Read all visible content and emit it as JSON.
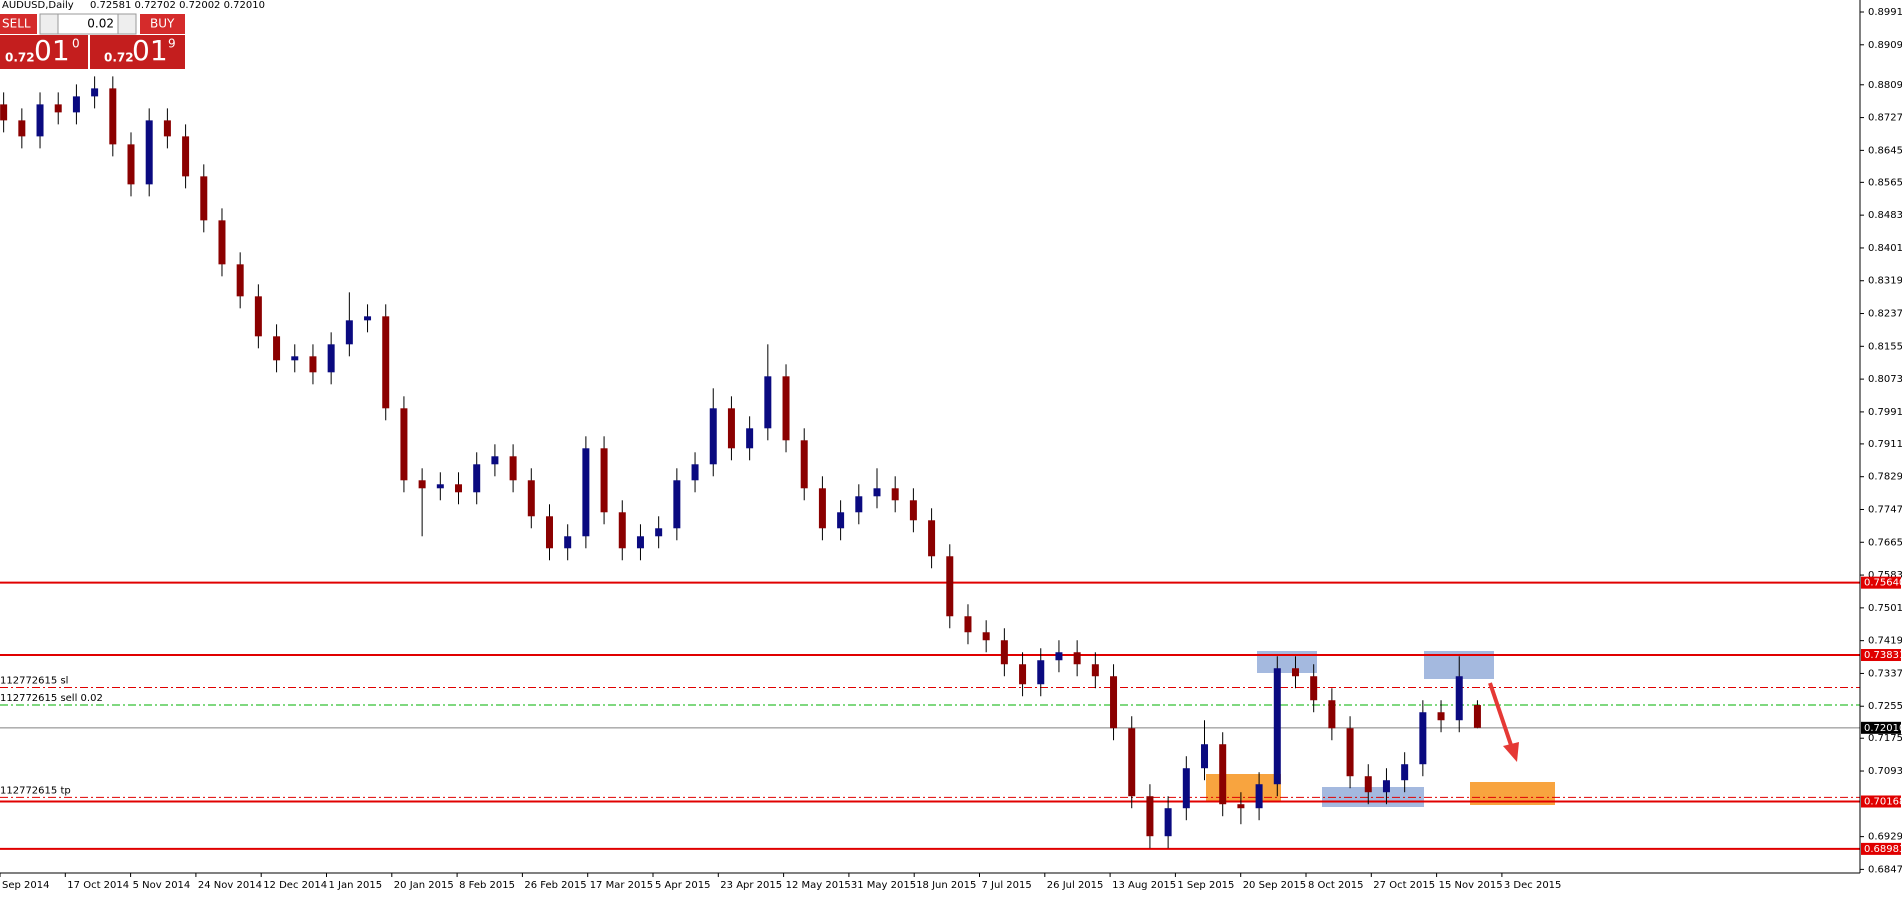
{
  "header": {
    "symbol": "AUDUSD,Daily",
    "quote": "0.72581 0.72702 0.72002 0.72010"
  },
  "trade_panel": {
    "sell": "SELL",
    "buy": "BUY",
    "lots": "0.02",
    "sell_price": {
      "big": "0.72",
      "pips": "01",
      "frac": "0"
    },
    "buy_price": {
      "big": "0.72",
      "pips": "01",
      "frac": "9"
    }
  },
  "chart_data": {
    "type": "candlestick",
    "up_color": "#0a0a80",
    "down_color": "#8b0000",
    "wick_color": "#000000",
    "categories": [
      "Sep 2014",
      "17 Oct 2014",
      "5 Nov 2014",
      "24 Nov 2014",
      "12 Dec 2014",
      "1 Jan 2015",
      "20 Jan 2015",
      "8 Feb 2015",
      "26 Feb 2015",
      "17 Mar 2015",
      "5 Apr 2015",
      "23 Apr 2015",
      "12 May 2015",
      "31 May 2015",
      "18 Jun 2015",
      "7 Jul 2015",
      "26 Jul 2015",
      "13 Aug 2015",
      "1 Sep 2015",
      "20 Sep 2015",
      "8 Oct 2015",
      "27 Oct 2015",
      "15 Nov 2015",
      "3 Dec 2015"
    ],
    "open": [
      0.876,
      0.872,
      0.868,
      0.876,
      0.874,
      0.878,
      0.88,
      0.866,
      0.856,
      0.872,
      0.868,
      0.858,
      0.847,
      0.836,
      0.828,
      0.818,
      0.812,
      0.813,
      0.809,
      0.816,
      0.822,
      0.823,
      0.8,
      0.782,
      0.78,
      0.781,
      0.779,
      0.786,
      0.788,
      0.782,
      0.773,
      0.765,
      0.768,
      0.79,
      0.774,
      0.765,
      0.768,
      0.77,
      0.782,
      0.786,
      0.8,
      0.79,
      0.795,
      0.808,
      0.792,
      0.78,
      0.77,
      0.774,
      0.778,
      0.78,
      0.777,
      0.772,
      0.763,
      0.748,
      0.744,
      0.742,
      0.736,
      0.731,
      0.737,
      0.739,
      0.736,
      0.733,
      0.72,
      0.703,
      0.693,
      0.7,
      0.71,
      0.716,
      0.701,
      0.7,
      0.706,
      0.735,
      0.733,
      0.727,
      0.72,
      0.708,
      0.704,
      0.707,
      0.711,
      0.724,
      0.722,
      0.7258
    ],
    "high": [
      0.879,
      0.875,
      0.879,
      0.879,
      0.881,
      0.883,
      0.883,
      0.869,
      0.875,
      0.875,
      0.871,
      0.861,
      0.85,
      0.839,
      0.831,
      0.821,
      0.816,
      0.816,
      0.819,
      0.829,
      0.826,
      0.826,
      0.803,
      0.785,
      0.784,
      0.784,
      0.789,
      0.791,
      0.791,
      0.785,
      0.776,
      0.771,
      0.793,
      0.793,
      0.777,
      0.771,
      0.773,
      0.785,
      0.789,
      0.805,
      0.803,
      0.798,
      0.816,
      0.811,
      0.795,
      0.783,
      0.777,
      0.781,
      0.785,
      0.783,
      0.78,
      0.775,
      0.766,
      0.751,
      0.747,
      0.745,
      0.739,
      0.74,
      0.742,
      0.742,
      0.739,
      0.736,
      0.723,
      0.706,
      0.703,
      0.713,
      0.722,
      0.719,
      0.704,
      0.709,
      0.738,
      0.738,
      0.736,
      0.73,
      0.723,
      0.711,
      0.71,
      0.714,
      0.727,
      0.727,
      0.738,
      0.727
    ],
    "low": [
      0.869,
      0.865,
      0.865,
      0.871,
      0.871,
      0.875,
      0.863,
      0.853,
      0.853,
      0.865,
      0.855,
      0.844,
      0.833,
      0.825,
      0.815,
      0.809,
      0.809,
      0.806,
      0.806,
      0.813,
      0.819,
      0.797,
      0.779,
      0.768,
      0.777,
      0.776,
      0.776,
      0.783,
      0.779,
      0.77,
      0.762,
      0.762,
      0.765,
      0.771,
      0.762,
      0.762,
      0.765,
      0.767,
      0.779,
      0.783,
      0.787,
      0.787,
      0.792,
      0.789,
      0.777,
      0.767,
      0.767,
      0.771,
      0.775,
      0.774,
      0.769,
      0.76,
      0.745,
      0.741,
      0.739,
      0.733,
      0.728,
      0.728,
      0.734,
      0.733,
      0.73,
      0.717,
      0.7,
      0.69,
      0.69,
      0.697,
      0.707,
      0.698,
      0.696,
      0.697,
      0.703,
      0.73,
      0.724,
      0.717,
      0.705,
      0.701,
      0.701,
      0.704,
      0.708,
      0.719,
      0.719,
      0.72
    ],
    "close": [
      0.872,
      0.868,
      0.876,
      0.874,
      0.878,
      0.88,
      0.866,
      0.856,
      0.872,
      0.868,
      0.858,
      0.847,
      0.836,
      0.828,
      0.818,
      0.812,
      0.813,
      0.809,
      0.816,
      0.822,
      0.823,
      0.8,
      0.782,
      0.78,
      0.781,
      0.779,
      0.786,
      0.788,
      0.782,
      0.773,
      0.765,
      0.768,
      0.79,
      0.774,
      0.765,
      0.768,
      0.77,
      0.782,
      0.786,
      0.8,
      0.79,
      0.795,
      0.808,
      0.792,
      0.78,
      0.77,
      0.774,
      0.778,
      0.78,
      0.777,
      0.772,
      0.763,
      0.748,
      0.744,
      0.742,
      0.736,
      0.731,
      0.737,
      0.739,
      0.736,
      0.733,
      0.72,
      0.703,
      0.693,
      0.7,
      0.71,
      0.716,
      0.701,
      0.7,
      0.706,
      0.735,
      0.733,
      0.727,
      0.72,
      0.708,
      0.704,
      0.707,
      0.711,
      0.724,
      0.722,
      0.733,
      0.7201
    ],
    "ylim": [
      0.6838,
      0.9021
    ],
    "yticks": [
      {
        "value": 0.8991,
        "label": "0.89910"
      },
      {
        "value": 0.8909,
        "label": "0.89090"
      },
      {
        "value": 0.8809,
        "label": "0.88090"
      },
      {
        "value": 0.8727,
        "label": "0.87270"
      },
      {
        "value": 0.8645,
        "label": "0.86450"
      },
      {
        "value": 0.8565,
        "label": "0.85650"
      },
      {
        "value": 0.8483,
        "label": "0.84830"
      },
      {
        "value": 0.8401,
        "label": "0.84010"
      },
      {
        "value": 0.8319,
        "label": "0.83190"
      },
      {
        "value": 0.8237,
        "label": "0.82370"
      },
      {
        "value": 0.8155,
        "label": "0.81550"
      },
      {
        "value": 0.8073,
        "label": "0.80730"
      },
      {
        "value": 0.7991,
        "label": "0.79910"
      },
      {
        "value": 0.7911,
        "label": "0.79110"
      },
      {
        "value": 0.7829,
        "label": "0.78290"
      },
      {
        "value": 0.7747,
        "label": "0.77470"
      },
      {
        "value": 0.7665,
        "label": "0.76650"
      },
      {
        "value": 0.7583,
        "label": "0.75830"
      },
      {
        "value": 0.7501,
        "label": "0.75010"
      },
      {
        "value": 0.7419,
        "label": "0.74190"
      },
      {
        "value": 0.7337,
        "label": "0.73370"
      },
      {
        "value": 0.7255,
        "label": "0.72550"
      },
      {
        "value": 0.7175,
        "label": "0.71750"
      },
      {
        "value": 0.7093,
        "label": "0.70930"
      },
      {
        "value": 0.6929,
        "label": "0.69290"
      },
      {
        "value": 0.6847,
        "label": "0.68470"
      }
    ],
    "levels": [
      {
        "value": 0.7564,
        "label": "0.75640",
        "color": "#e00000",
        "tag_color": "#e00000"
      },
      {
        "value": 0.73831,
        "label": "0.73831",
        "color": "#e00000",
        "tag_color": "#e00000"
      },
      {
        "value": 0.7201,
        "label": "0.72010",
        "color": "#808080",
        "tag_color": "#000000"
      },
      {
        "value": 0.70168,
        "label": "0.70168",
        "color": "#e00000",
        "tag_color": "#e00000"
      },
      {
        "value": 0.68983,
        "label": "0.68983",
        "color": "#e00000",
        "tag_color": "#e00000"
      }
    ],
    "orders": [
      {
        "value": 0.7302,
        "label": "112772615 sl",
        "color": "#e00000"
      },
      {
        "value": 0.7258,
        "label": "112772615 sell 0.02",
        "color": "#00b000"
      },
      {
        "value": 0.7027,
        "label": "112772615 tp",
        "color": "#e00000"
      }
    ]
  }
}
